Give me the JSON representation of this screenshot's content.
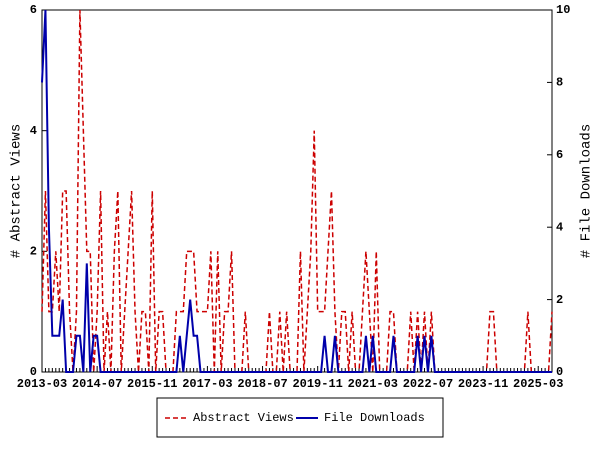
{
  "chart_data": {
    "type": "line",
    "ylabel": "# Abstract Views",
    "y2label": "# File Downloads",
    "ylim": [
      0,
      6
    ],
    "yticks": [
      0,
      2,
      4,
      6
    ],
    "y2lim": [
      0,
      10
    ],
    "y2ticks": [
      0,
      2,
      4,
      6,
      8,
      10
    ],
    "legend": "bottom",
    "categories": [
      "2013-03",
      null,
      null,
      null,
      null,
      null,
      null,
      null,
      null,
      null,
      null,
      null,
      null,
      null,
      null,
      null,
      "2014-07",
      null,
      null,
      null,
      null,
      null,
      null,
      null,
      null,
      null,
      null,
      null,
      null,
      null,
      null,
      null,
      "2015-11",
      null,
      null,
      null,
      null,
      null,
      null,
      null,
      null,
      null,
      null,
      null,
      null,
      null,
      null,
      null,
      "2017-03",
      null,
      null,
      null,
      null,
      null,
      null,
      null,
      null,
      null,
      null,
      null,
      null,
      null,
      null,
      null,
      "2018-07",
      null,
      null,
      null,
      null,
      null,
      null,
      null,
      null,
      null,
      null,
      null,
      null,
      null,
      null,
      null,
      "2019-11",
      null,
      null,
      null,
      null,
      null,
      null,
      null,
      null,
      null,
      null,
      null,
      null,
      null,
      null,
      null,
      "2021-03",
      null,
      null,
      null,
      null,
      null,
      null,
      null,
      null,
      null,
      null,
      null,
      null,
      null,
      null,
      null,
      "2022-07",
      null,
      null,
      null,
      null,
      null,
      null,
      null,
      null,
      null,
      null,
      null,
      null,
      null,
      null,
      null,
      "2023-11",
      null,
      null,
      null,
      null,
      null,
      null,
      null,
      null,
      null,
      null,
      null,
      null,
      null,
      null,
      null,
      "2025-03",
      null,
      null,
      null,
      null
    ],
    "series": [
      {
        "name": "Abstract Views",
        "color": "#cc0000",
        "dashed": true,
        "axis": "y",
        "values": [
          1,
          3,
          1,
          1,
          2,
          1,
          3,
          3,
          1,
          0,
          1,
          6,
          4,
          2,
          2,
          0,
          1,
          3,
          0,
          1,
          0,
          2,
          3,
          0,
          1,
          2,
          3,
          1,
          0,
          1,
          1,
          0,
          3,
          0,
          1,
          1,
          0,
          0,
          0,
          1,
          1,
          1,
          2,
          2,
          2,
          1,
          1,
          1,
          1,
          2,
          0,
          2,
          0,
          1,
          1,
          2,
          0,
          0,
          0,
          1,
          0,
          0,
          0,
          0,
          0,
          0,
          1,
          0,
          0,
          1,
          0,
          1,
          0,
          0,
          0,
          2,
          0,
          1,
          2,
          4,
          1,
          1,
          1,
          2,
          3,
          1,
          0,
          1,
          1,
          0,
          1,
          0,
          0,
          1,
          2,
          1,
          0,
          2,
          0,
          0,
          0,
          1,
          1,
          0,
          0,
          0,
          0,
          1,
          0,
          1,
          0,
          1,
          0,
          1,
          0,
          0,
          0,
          0,
          0,
          0,
          0,
          0,
          0,
          0,
          0,
          0,
          0,
          0,
          0,
          0,
          1,
          1,
          0,
          0,
          0,
          0,
          0,
          0,
          0,
          0,
          0,
          1,
          0,
          0,
          0,
          0,
          0,
          0,
          1
        ]
      },
      {
        "name": "File Downloads",
        "color": "#0000aa",
        "dashed": false,
        "axis": "y2",
        "values": [
          8,
          10,
          4,
          1,
          1,
          1,
          2,
          0,
          0,
          0,
          1,
          1,
          0,
          3,
          0,
          1,
          1,
          0,
          0,
          0,
          0,
          0,
          0,
          0,
          0,
          0,
          0,
          0,
          0,
          0,
          0,
          0,
          0,
          0,
          0,
          0,
          0,
          0,
          0,
          0,
          1,
          0,
          1,
          2,
          1,
          1,
          0,
          0,
          0,
          0,
          0,
          0,
          0,
          0,
          0,
          0,
          0,
          0,
          0,
          0,
          0,
          0,
          0,
          0,
          0,
          0,
          0,
          0,
          0,
          0,
          0,
          0,
          0,
          0,
          0,
          0,
          0,
          0,
          0,
          0,
          0,
          0,
          1,
          0,
          0,
          1,
          0,
          0,
          0,
          0,
          0,
          0,
          0,
          0,
          1,
          0,
          1,
          0,
          0,
          0,
          0,
          0,
          1,
          0,
          0,
          0,
          0,
          0,
          0,
          1,
          0,
          1,
          0,
          1,
          0,
          0,
          0,
          0,
          0,
          0,
          0,
          0,
          0,
          0,
          0,
          0,
          0,
          0,
          0,
          0,
          0,
          0,
          0,
          0,
          0,
          0,
          0,
          0,
          0,
          0,
          0,
          0,
          0,
          0,
          0,
          0,
          0,
          0,
          0
        ]
      }
    ]
  }
}
